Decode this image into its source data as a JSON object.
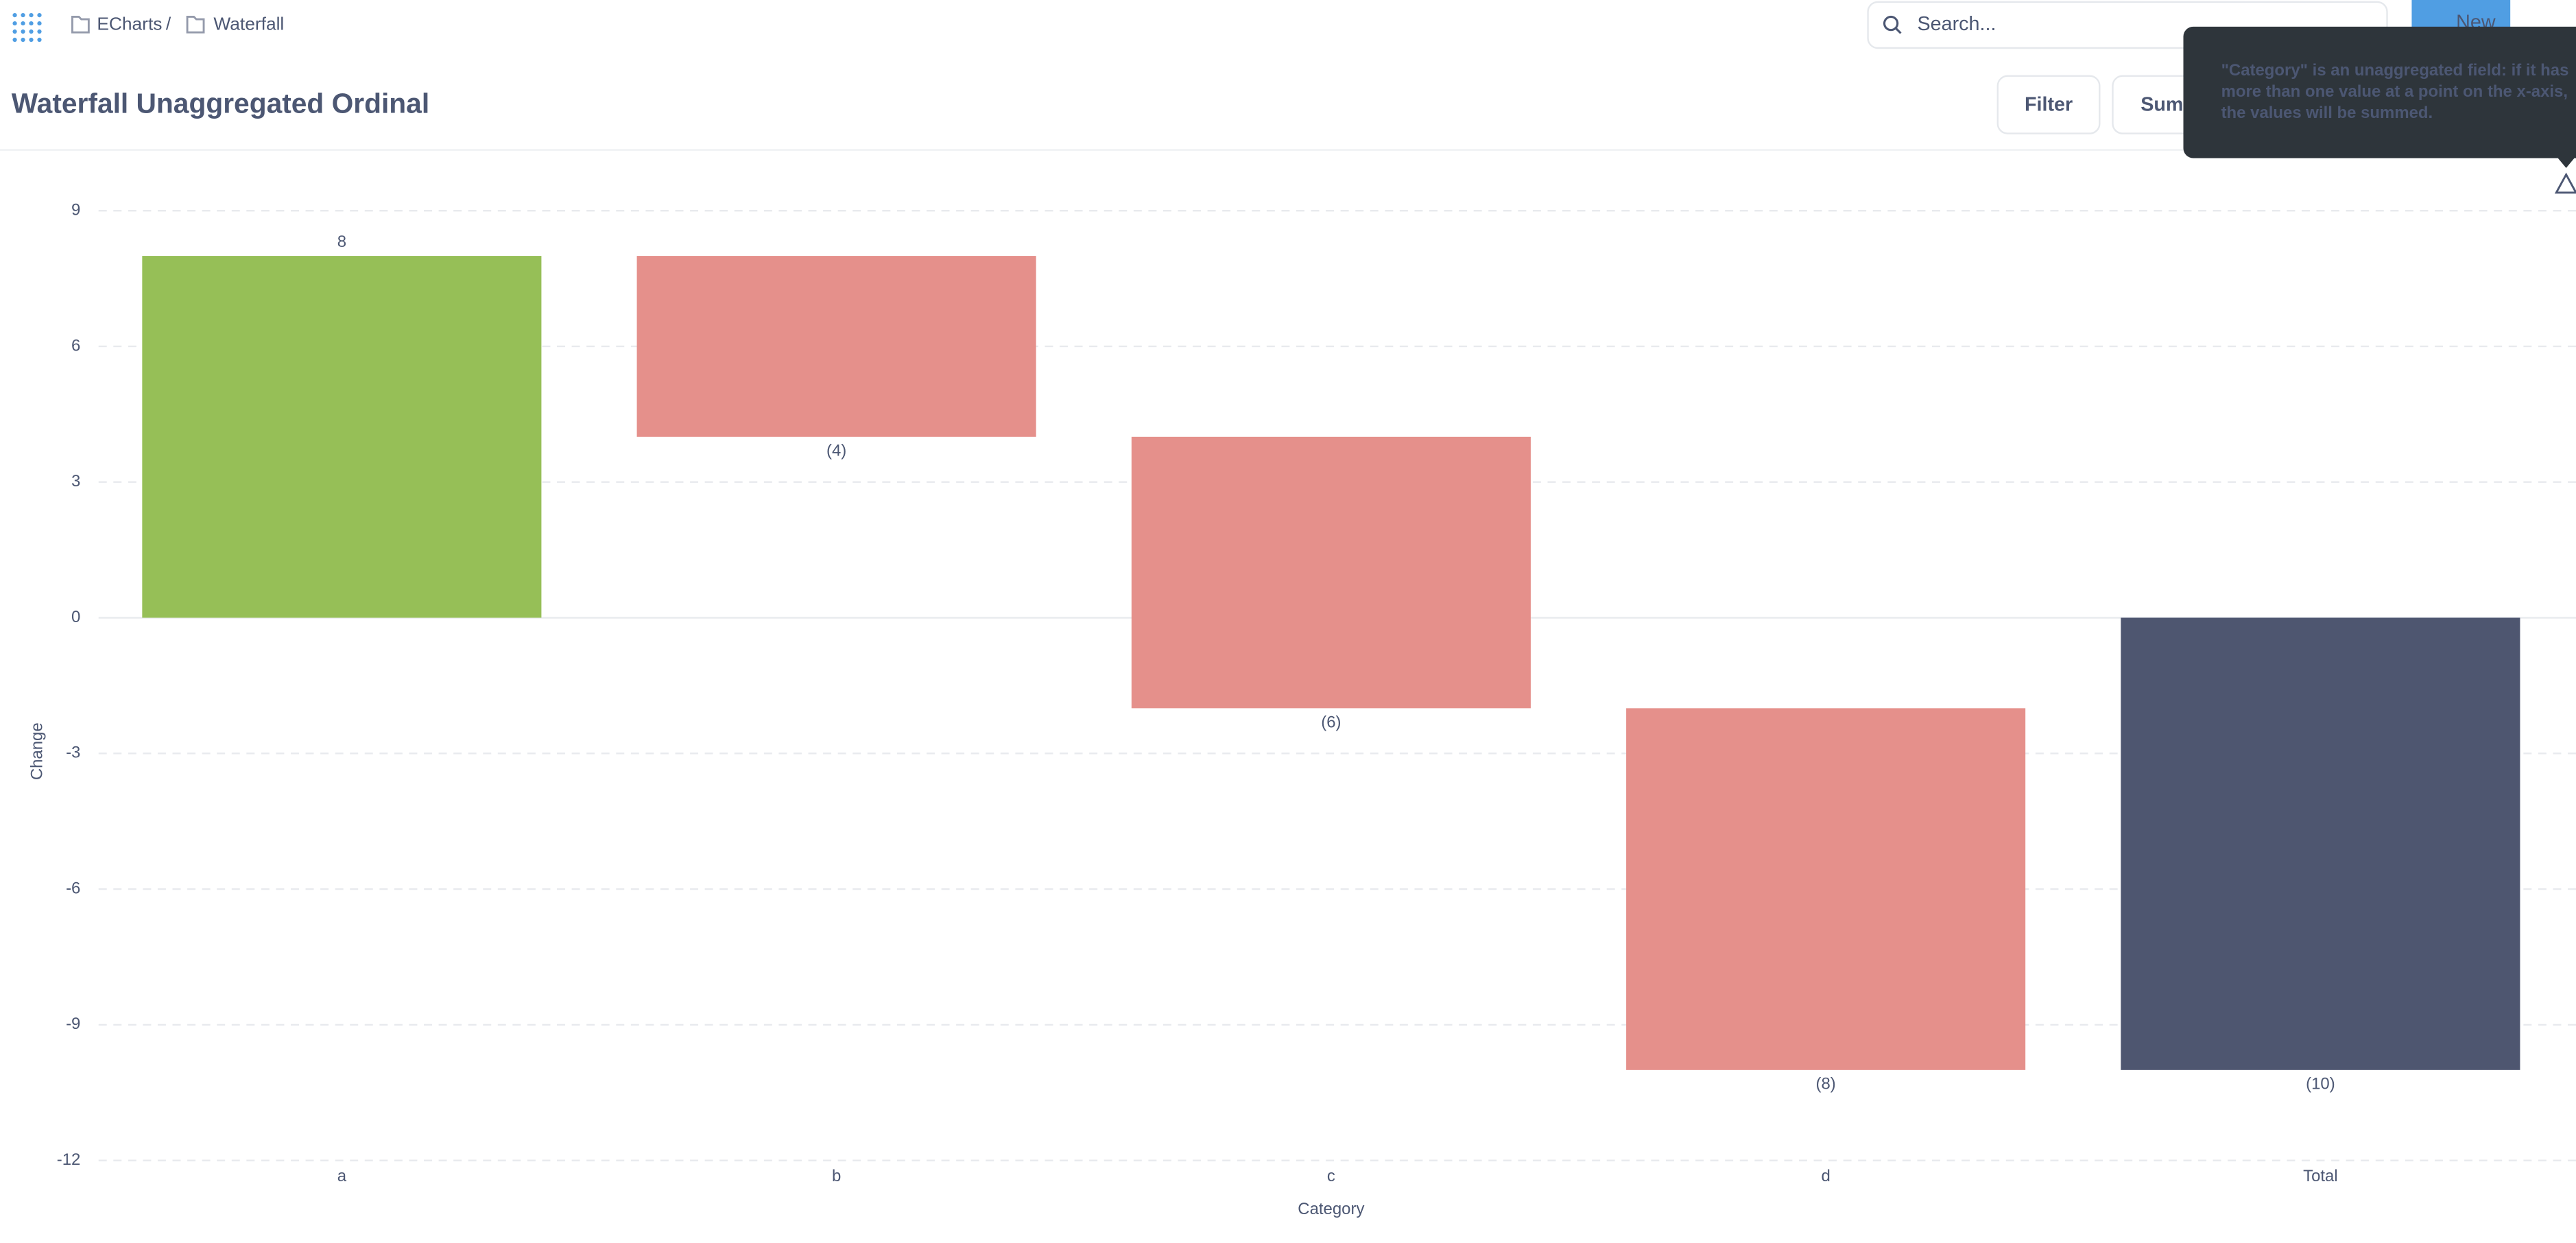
{
  "header": {
    "breadcrumbs": [
      "ECharts",
      "Waterfall"
    ],
    "separator": "/",
    "search": "Search...",
    "new_button": "New",
    "title": "Waterfall Unaggregated Ordinal",
    "buttons": [
      "Filter",
      "Summarize"
    ]
  },
  "tooltip": {
    "lines": [
      "\"Category\" is an unaggregated field: if it has",
      "more than one value at a point on the x-axis,",
      "the values will be summed."
    ]
  },
  "chart_data": {
    "type": "waterfall",
    "x_label": "Category",
    "y_label": "Change",
    "categories": [
      "a",
      "b",
      "c",
      "d",
      "Total"
    ],
    "values": [
      8,
      -4,
      -6,
      -8,
      -10
    ],
    "value_labels": [
      "8",
      "(4)",
      "(6)",
      "(8)",
      "(10)"
    ],
    "last_is_total": true,
    "colors": {
      "increase": "#96bf57",
      "decrease": "#e5908b",
      "total": "#4e5670"
    },
    "ylim": [
      -12,
      9
    ],
    "yticks": [
      -12,
      -9,
      -6,
      -3,
      0,
      3,
      6,
      9
    ],
    "grid": true
  }
}
